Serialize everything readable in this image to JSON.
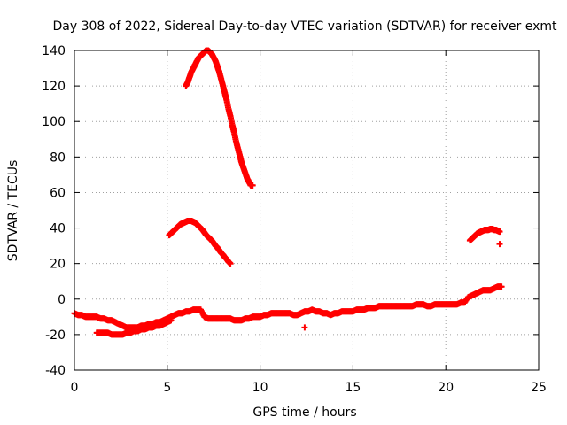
{
  "chart_data": {
    "type": "scatter",
    "title": "Day 308 of 2022, Sidereal Day-to-day VTEC variation (SDTVAR) for receiver exmt",
    "xlabel": "GPS time / hours",
    "ylabel": "SDTVAR / TECUs",
    "xlim": [
      0,
      25
    ],
    "ylim": [
      -40,
      140
    ],
    "xticks": [
      0,
      5,
      10,
      15,
      20,
      25
    ],
    "yticks": [
      -40,
      -20,
      0,
      20,
      40,
      60,
      80,
      100,
      120,
      140
    ],
    "grid": true,
    "marker": "plus",
    "color": "#ff0000",
    "series": [
      {
        "name": "arc high",
        "x": [
          6.0,
          6.1,
          6.2,
          6.3,
          6.4,
          6.5,
          6.6,
          6.7,
          6.8,
          6.9,
          7.0,
          7.1,
          7.2,
          7.3,
          7.4,
          7.5,
          7.6,
          7.7,
          7.8,
          7.9,
          8.0,
          8.1,
          8.2,
          8.3,
          8.4,
          8.5,
          8.6,
          8.7,
          8.8,
          8.9,
          9.0,
          9.1,
          9.2,
          9.3,
          9.4,
          9.5,
          9.6
        ],
        "y": [
          120,
          122,
          125,
          128,
          130,
          132,
          134,
          136,
          137,
          138,
          139,
          140,
          140,
          139,
          138,
          136,
          134,
          131,
          128,
          124,
          120,
          116,
          112,
          107,
          103,
          98,
          94,
          89,
          85,
          81,
          77,
          74,
          71,
          68,
          66,
          64,
          64
        ]
      },
      {
        "name": "arc mid",
        "x": [
          5.1,
          5.2,
          5.3,
          5.4,
          5.5,
          5.6,
          5.7,
          5.8,
          5.9,
          6.0,
          6.1,
          6.2,
          6.3,
          6.4,
          6.5,
          6.6,
          6.7,
          6.8,
          6.9,
          7.0,
          7.1,
          7.2,
          7.3,
          7.4,
          7.5,
          7.6,
          7.7,
          7.8,
          7.9,
          8.0,
          8.1,
          8.2,
          8.3,
          8.4
        ],
        "y": [
          36,
          37,
          38,
          39,
          40,
          41,
          42,
          42.5,
          43,
          43.5,
          44,
          44,
          44,
          43.5,
          43,
          42,
          41,
          40,
          39,
          37.5,
          36,
          35,
          34,
          33,
          31.5,
          30,
          29,
          27.5,
          26,
          25,
          23.5,
          22.5,
          21,
          20
        ]
      },
      {
        "name": "arc late",
        "x": [
          21.3,
          21.4,
          21.5,
          21.6,
          21.7,
          21.8,
          21.9,
          22.0,
          22.1,
          22.2,
          22.3,
          22.4,
          22.5,
          22.6,
          22.7,
          22.8,
          22.9,
          22.9
        ],
        "y": [
          33,
          34,
          35,
          36,
          37,
          37.5,
          38,
          38.5,
          39,
          39,
          39,
          39.5,
          39.5,
          39,
          39,
          38.5,
          38,
          31
        ]
      },
      {
        "name": "baseline",
        "x": [
          0.0,
          0.2,
          0.4,
          0.6,
          0.8,
          1.0,
          1.2,
          1.4,
          1.6,
          1.8,
          2.0,
          2.2,
          2.4,
          2.6,
          2.8,
          3.0,
          3.2,
          3.4,
          3.6,
          3.8,
          4.0,
          4.2,
          4.4,
          4.6,
          4.8,
          5.0,
          5.2,
          5.4,
          5.6,
          5.8,
          6.0,
          6.2,
          6.4,
          6.6,
          6.8,
          7.0,
          7.2,
          7.4,
          7.6,
          7.8,
          8.0,
          8.2,
          8.4,
          8.6,
          8.8,
          9.0,
          9.2,
          9.4,
          9.6,
          9.8,
          10.0,
          10.2,
          10.4,
          10.6,
          10.8,
          11.0,
          11.2,
          11.4,
          11.6,
          11.8,
          12.0,
          12.2,
          12.4,
          12.6,
          12.8,
          13.0,
          13.2,
          13.4,
          13.6,
          13.8,
          14.0,
          14.2,
          14.4,
          14.6,
          14.8,
          15.0,
          15.2,
          15.4,
          15.6,
          15.8,
          16.0,
          16.2,
          16.4,
          16.6,
          16.8,
          17.0,
          17.2,
          17.4,
          17.6,
          17.8,
          18.0,
          18.2,
          18.4,
          18.6,
          18.8,
          19.0,
          19.2,
          19.4,
          19.6,
          19.8,
          20.0,
          20.2,
          20.4,
          20.6,
          20.8,
          21.0,
          21.2,
          21.4,
          21.6,
          21.8,
          22.0,
          22.2,
          22.4,
          22.6,
          22.8,
          23.0
        ],
        "y": [
          -8,
          -9,
          -9,
          -10,
          -10,
          -10,
          -10,
          -11,
          -11,
          -12,
          -12,
          -13,
          -14,
          -15,
          -16,
          -16,
          -16,
          -16,
          -15,
          -15,
          -14,
          -14,
          -13,
          -13,
          -12,
          -11,
          -10,
          -9,
          -8,
          -8,
          -7,
          -7,
          -6,
          -6,
          -6,
          -10,
          -11,
          -11,
          -11,
          -11,
          -11,
          -11,
          -11,
          -12,
          -12,
          -12,
          -11,
          -11,
          -10,
          -10,
          -10,
          -9,
          -9,
          -8,
          -8,
          -8,
          -8,
          -8,
          -8,
          -9,
          -9,
          -8,
          -7,
          -7,
          -6,
          -7,
          -7,
          -8,
          -8,
          -9,
          -8,
          -8,
          -7,
          -7,
          -7,
          -7,
          -6,
          -6,
          -6,
          -5,
          -5,
          -5,
          -4,
          -4,
          -4,
          -4,
          -4,
          -4,
          -4,
          -4,
          -4,
          -4,
          -3,
          -3,
          -3,
          -4,
          -4,
          -3,
          -3,
          -3,
          -3,
          -3,
          -3,
          -3,
          -2,
          -2,
          1,
          2,
          3,
          4,
          5,
          5,
          5,
          6,
          7,
          7
        ]
      },
      {
        "name": "lower branch",
        "x": [
          1.2,
          1.4,
          1.6,
          1.8,
          2.0,
          2.2,
          2.4,
          2.6,
          2.8,
          3.0,
          3.2,
          3.4,
          3.6,
          3.8,
          4.0,
          4.2,
          4.4,
          4.6,
          4.8,
          5.0,
          5.2
        ],
        "y": [
          -19,
          -19,
          -19,
          -19,
          -20,
          -20,
          -20,
          -20,
          -19,
          -19,
          -18,
          -18,
          -17,
          -17,
          -16,
          -16,
          -15,
          -15,
          -14,
          -13,
          -12
        ]
      },
      {
        "name": "outlier",
        "x": [
          12.4
        ],
        "y": [
          -16
        ]
      }
    ]
  }
}
